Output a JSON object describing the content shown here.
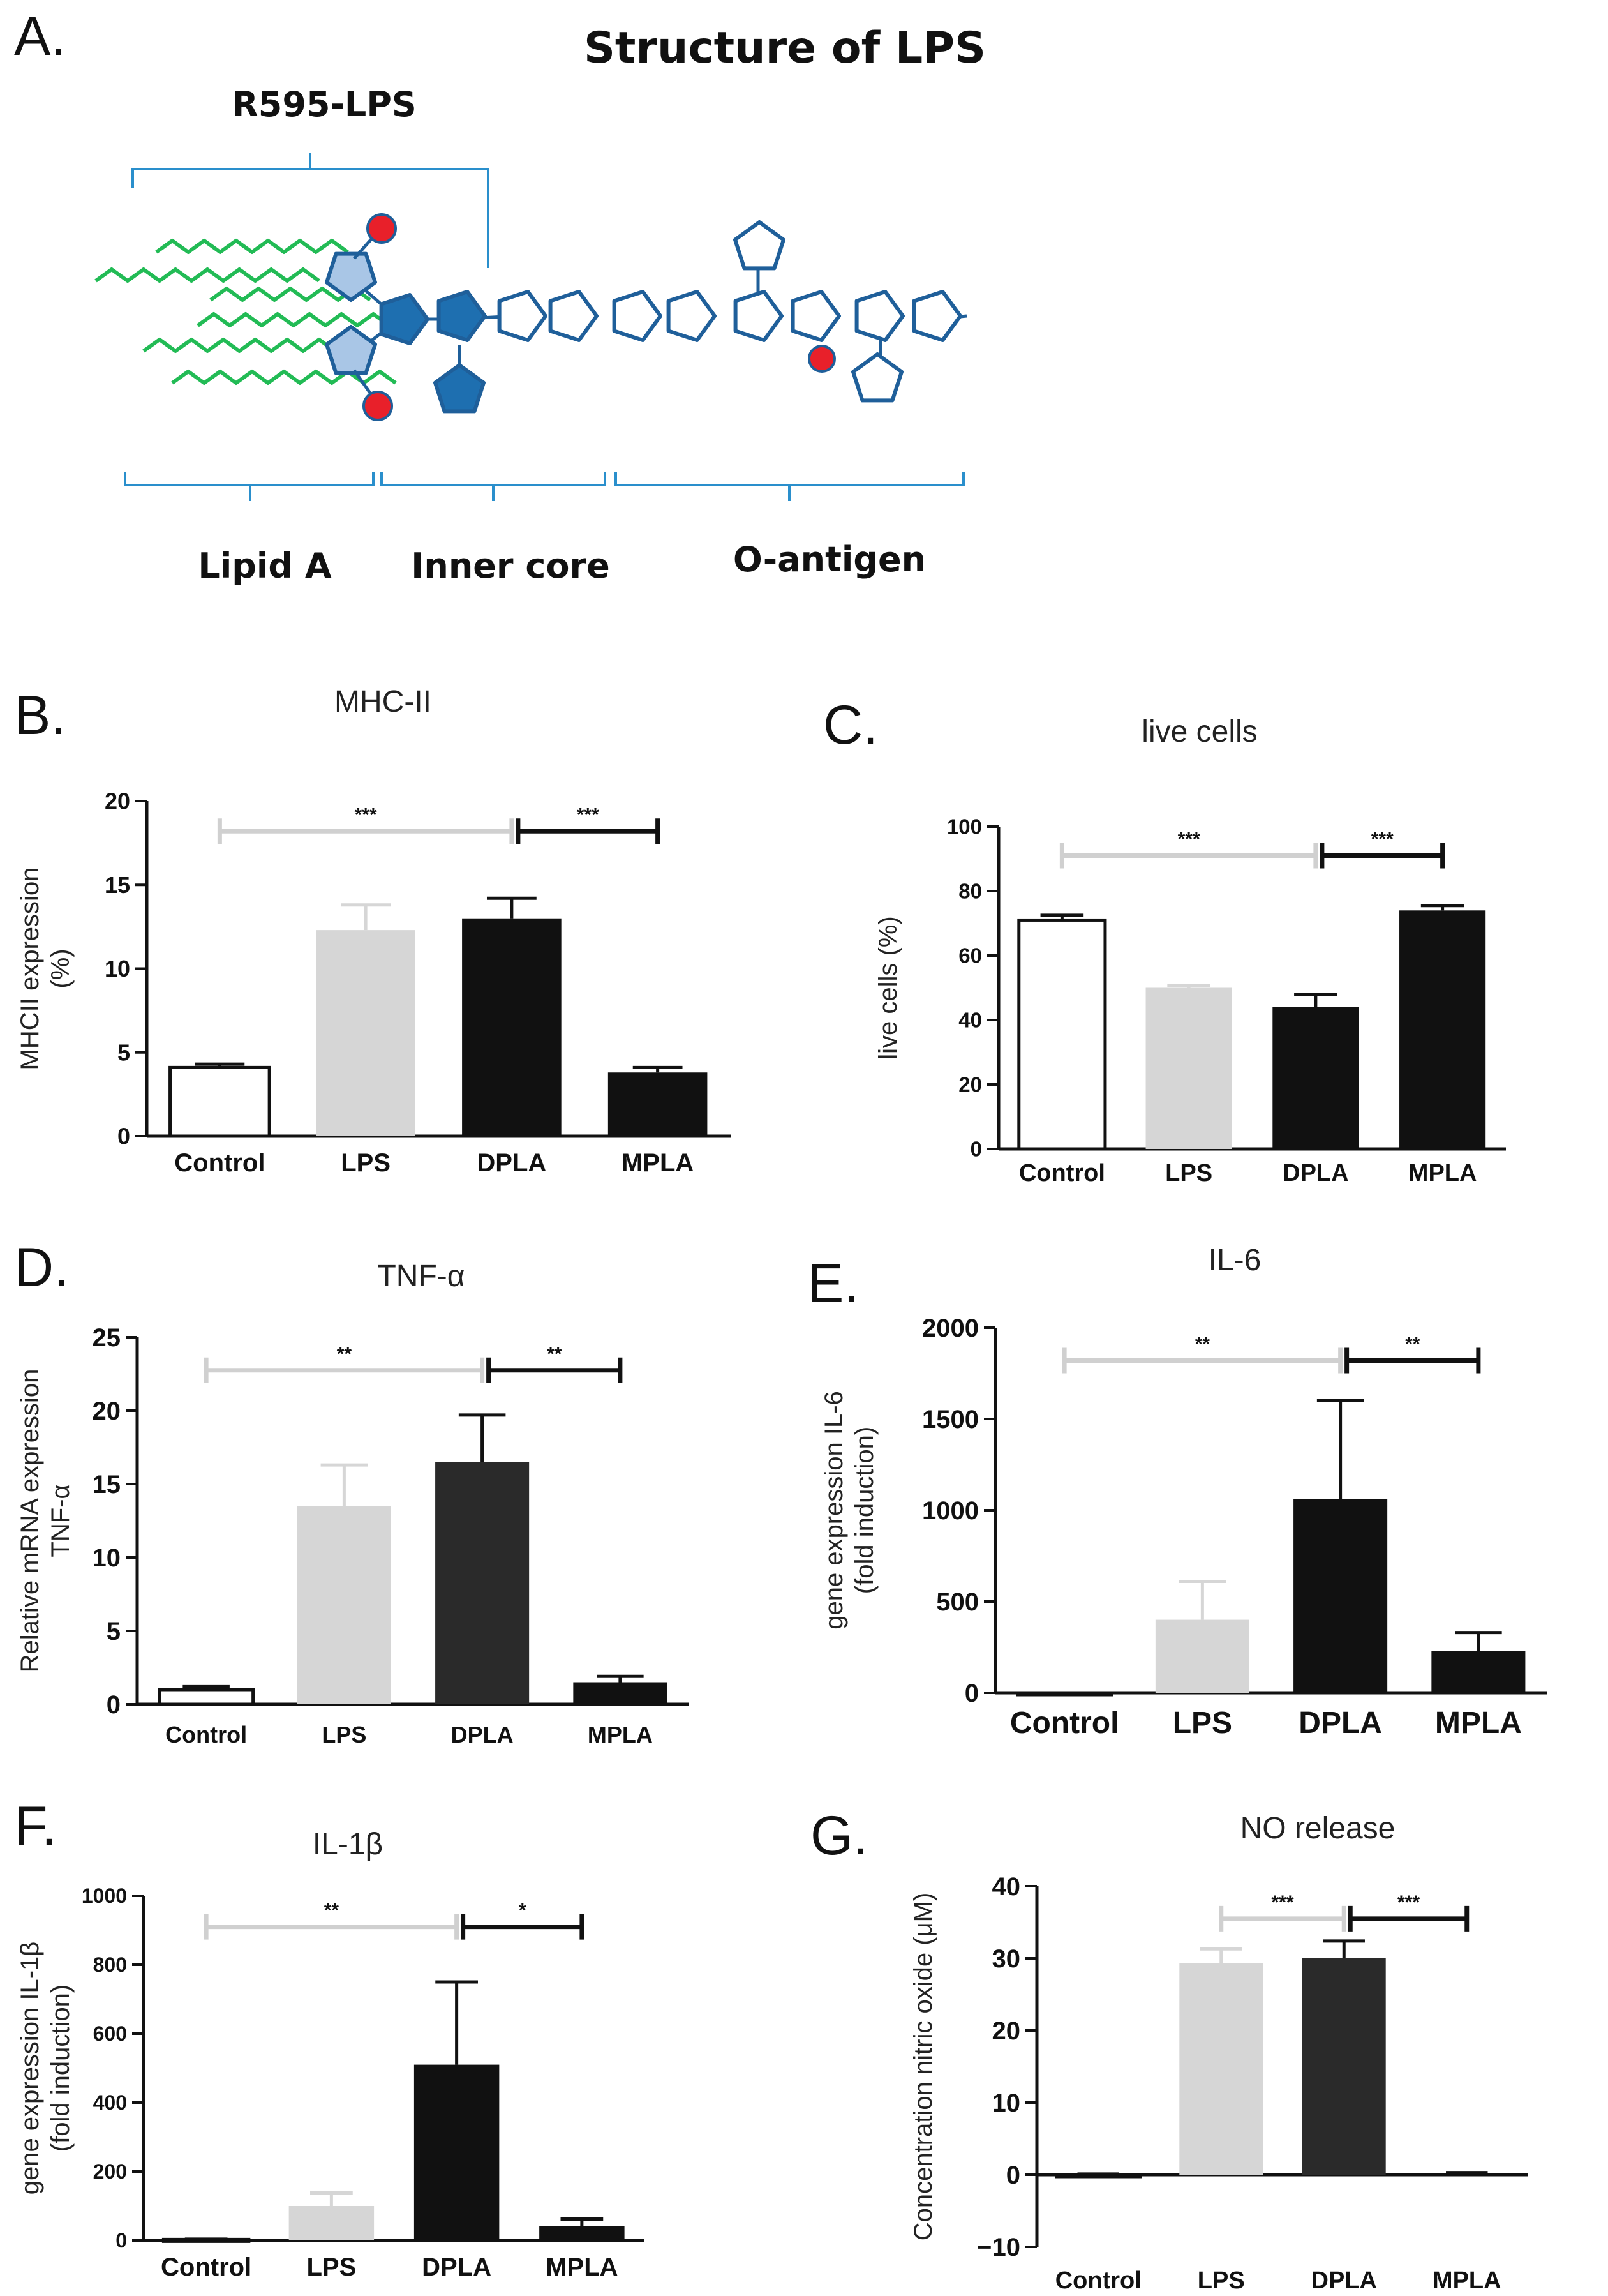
{
  "panelA": {
    "letter": "A.",
    "title": "Structure of LPS",
    "r595_label": "R595-LPS",
    "regions": [
      "Lipid A",
      "Inner core",
      "O-antigen"
    ],
    "colors": {
      "chain": "#22bb55",
      "sugar_outline": "#1f5f9a",
      "sugar_light": "#a9c6e6",
      "sugar_dark": "#1e6fb0",
      "phosphate": "#e8202a",
      "bracket": "#2a8fcc"
    }
  },
  "colors": {
    "control": "#ffffff",
    "lps": "#d6d6d6",
    "dpla": "#111111",
    "dpla_dark_gray": "#2a2a2a",
    "mpla": "#111111",
    "sig_gray": "#d0d0d0",
    "sig_black": "#111111"
  },
  "chart_data": [
    {
      "panel": "B.",
      "type": "bar",
      "title": "MHC-II",
      "ylabel_lines": [
        "MHCII expression",
        "(%)"
      ],
      "categories": [
        "Control",
        "LPS",
        "DPLA",
        "MPLA"
      ],
      "values": [
        4.1,
        12.3,
        13.0,
        3.8
      ],
      "errors": [
        0.2,
        1.5,
        1.2,
        0.3
      ],
      "ylim": [
        0,
        20
      ],
      "yticks": [
        "0",
        "5",
        "10",
        "15",
        "20"
      ],
      "significance": [
        {
          "from": 0,
          "to": 2,
          "label": "***",
          "color": "gray"
        },
        {
          "from": 2,
          "to": 3,
          "label": "***",
          "color": "black"
        }
      ]
    },
    {
      "panel": "C.",
      "type": "bar",
      "title": "live cells",
      "ylabel_lines": [
        "live cells (%)"
      ],
      "categories": [
        "Control",
        "LPS",
        "DPLA",
        "MPLA"
      ],
      "values": [
        71,
        50,
        44,
        74
      ],
      "errors": [
        1.5,
        0.8,
        4,
        1.5
      ],
      "ylim": [
        0,
        100
      ],
      "yticks": [
        "0",
        "20",
        "40",
        "60",
        "80",
        "100"
      ],
      "significance": [
        {
          "from": 0,
          "to": 2,
          "label": "***",
          "color": "gray"
        },
        {
          "from": 2,
          "to": 3,
          "label": "***",
          "color": "black"
        }
      ]
    },
    {
      "panel": "D.",
      "type": "bar",
      "title": "TNF-α",
      "ylabel_lines": [
        "Relative mRNA expression",
        "TNF-α"
      ],
      "categories": [
        "Control",
        "LPS",
        "DPLA",
        "MPLA"
      ],
      "values": [
        1.0,
        13.5,
        16.5,
        1.5
      ],
      "errors": [
        0.2,
        2.8,
        3.2,
        0.4
      ],
      "ylim": [
        0,
        25
      ],
      "yticks": [
        "0",
        "5",
        "10",
        "15",
        "20",
        "25"
      ],
      "significance": [
        {
          "from": 0,
          "to": 2,
          "label": "**",
          "color": "gray"
        },
        {
          "from": 2,
          "to": 3,
          "label": "**",
          "color": "black"
        }
      ]
    },
    {
      "panel": "E.",
      "type": "bar",
      "title": "IL-6",
      "ylabel_lines": [
        "gene expression IL-6",
        "(fold induction)"
      ],
      "categories": [
        "Control",
        "LPS",
        "DPLA",
        "MPLA"
      ],
      "values": [
        0,
        400,
        1060,
        230
      ],
      "errors": [
        0,
        210,
        540,
        100
      ],
      "ylim": [
        0,
        2000
      ],
      "yticks": [
        "0",
        "500",
        "1000",
        "1500",
        "2000"
      ],
      "significance": [
        {
          "from": 0,
          "to": 2,
          "label": "**",
          "color": "gray"
        },
        {
          "from": 2,
          "to": 3,
          "label": "**",
          "color": "black"
        }
      ]
    },
    {
      "panel": "F.",
      "type": "bar",
      "title": "IL-1β",
      "ylabel_lines": [
        "gene expression IL-1β",
        "(fold induction)"
      ],
      "categories": [
        "Control",
        "LPS",
        "DPLA",
        "MPLA"
      ],
      "values": [
        3,
        100,
        510,
        42
      ],
      "errors": [
        1,
        38,
        240,
        20
      ],
      "ylim": [
        0,
        1000
      ],
      "yticks": [
        "0",
        "200",
        "400",
        "600",
        "800",
        "1000"
      ],
      "significance": [
        {
          "from": 0,
          "to": 2,
          "label": "**",
          "color": "gray"
        },
        {
          "from": 2,
          "to": 3,
          "label": "*",
          "color": "black"
        }
      ]
    },
    {
      "panel": "G.",
      "type": "bar",
      "title": "NO release",
      "ylabel_lines": [
        "Concentration  nitric oxide (μM)"
      ],
      "categories": [
        "Control",
        "LPS",
        "DPLA",
        "MPLA"
      ],
      "values": [
        -0.2,
        29.3,
        30.0,
        0.2
      ],
      "errors": [
        0.1,
        2.0,
        2.4,
        0.1
      ],
      "ylim": [
        -10,
        40
      ],
      "yticks": [
        "−10",
        "0",
        "10",
        "20",
        "30",
        "40"
      ],
      "significance": [
        {
          "from": 1,
          "to": 2,
          "label": "***",
          "color": "gray"
        },
        {
          "from": 2,
          "to": 3,
          "label": "***",
          "color": "black"
        }
      ]
    }
  ]
}
